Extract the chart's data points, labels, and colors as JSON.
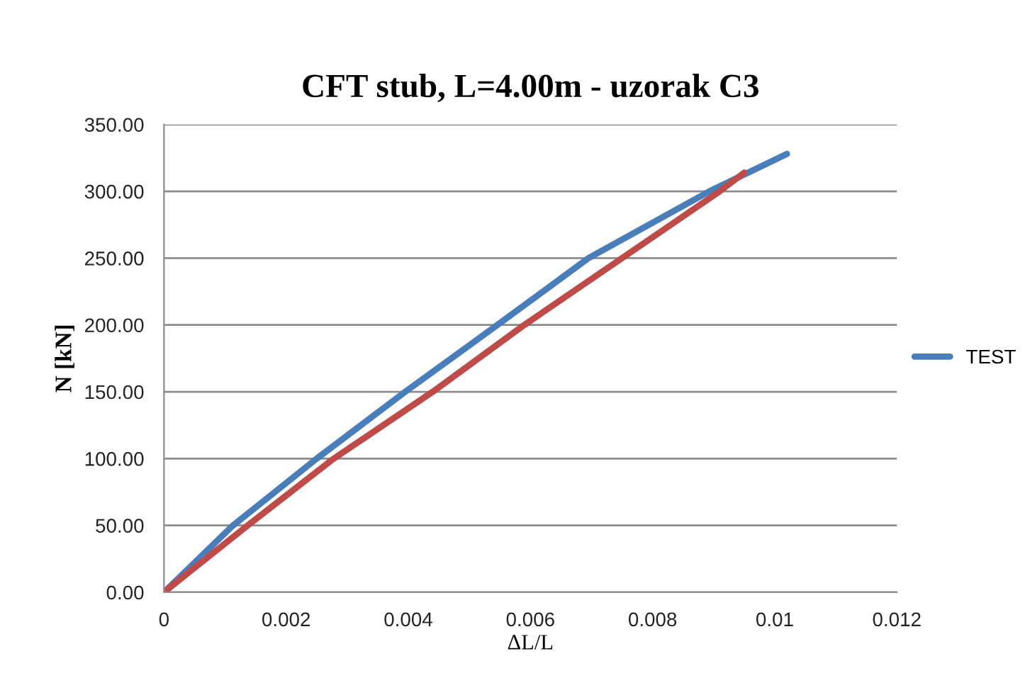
{
  "chart_data": {
    "type": "line",
    "title": "CFT stub, L=4.00m - uzorak C3",
    "xlabel": "ΔL/L",
    "ylabel": "N [kN]",
    "xlim": [
      0,
      0.012
    ],
    "xticks": [
      0,
      0.002,
      0.004,
      0.006,
      0.008,
      0.01,
      0.012
    ],
    "ylim": [
      0,
      350
    ],
    "yticks": [
      {
        "value": 0,
        "label": "0.00"
      },
      {
        "value": 50,
        "label": "50.00"
      },
      {
        "value": 100,
        "label": "100.00"
      },
      {
        "value": 150,
        "label": "150.00"
      },
      {
        "value": 200,
        "label": "200.00"
      },
      {
        "value": 250,
        "label": "250.00"
      },
      {
        "value": 300,
        "label": "300.00"
      },
      {
        "value": 350,
        "label": "350.00"
      }
    ],
    "grid": "y",
    "legend": "right",
    "marker": "none",
    "line_style": "solid",
    "series": [
      {
        "name": "TEST",
        "color": "#4a7ebb",
        "x": [
          0,
          0.00113,
          0.0025,
          0.00395,
          0.00546,
          0.00695,
          0.00893,
          0.0102
        ],
        "values": [
          0,
          50,
          100,
          150,
          200,
          250,
          300,
          328
        ]
      },
      {
        "color": "#be4b48",
        "x": [
          0,
          0.00137,
          0.00278,
          0.0044,
          0.0059,
          0.0075,
          0.0091,
          0.0095
        ],
        "values": [
          0,
          50,
          100,
          150,
          200,
          250,
          300,
          314
        ]
      }
    ]
  }
}
